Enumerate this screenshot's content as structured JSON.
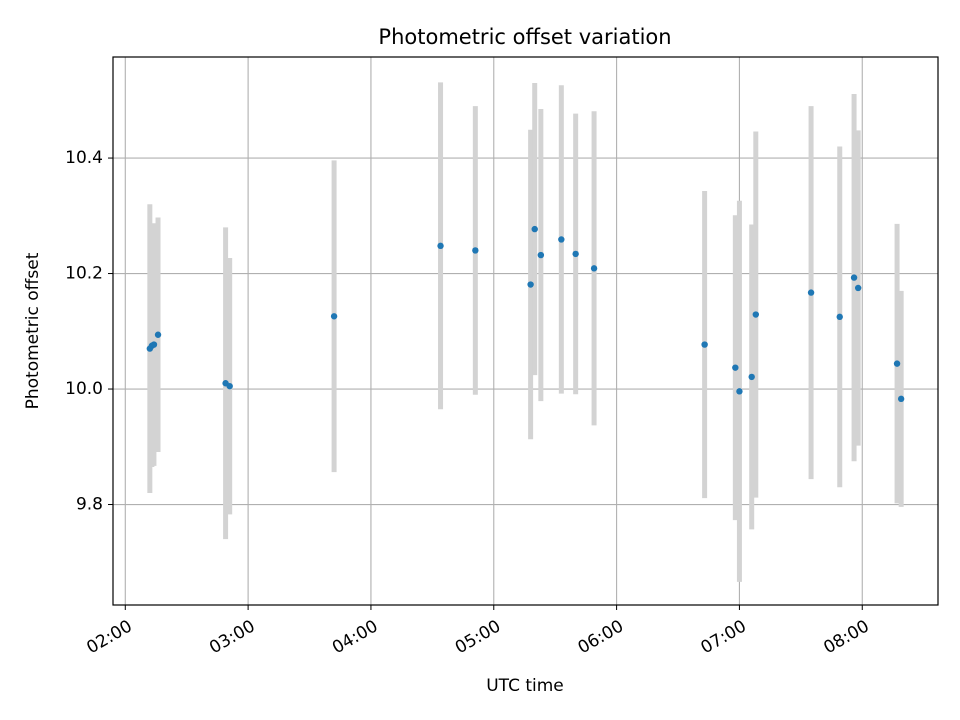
{
  "chart_data": {
    "type": "scatter",
    "title": "Photometric offset variation",
    "xlabel": "UTC time",
    "ylabel": "Photometric offset",
    "x_ticks": [
      "02:00",
      "03:00",
      "04:00",
      "05:00",
      "06:00",
      "07:00",
      "08:00"
    ],
    "y_ticks": [
      "9.8",
      "10.0",
      "10.2",
      "10.4"
    ],
    "xlim": [
      "01:54",
      "08:37"
    ],
    "ylim": [
      9.626,
      10.575
    ],
    "grid": true,
    "marker_color": "#1f77b4",
    "errorbar_color": "#d3d3d3",
    "points": [
      {
        "x": "02:12",
        "y": 10.07,
        "err": 0.25
      },
      {
        "x": "02:13",
        "y": 10.075,
        "err": 0.21
      },
      {
        "x": "02:14",
        "y": 10.077,
        "err": 0.21
      },
      {
        "x": "02:16",
        "y": 10.094,
        "err": 0.203
      },
      {
        "x": "02:49",
        "y": 10.01,
        "err": 0.27
      },
      {
        "x": "02:51",
        "y": 10.005,
        "err": 0.222
      },
      {
        "x": "03:42",
        "y": 10.126,
        "err": 0.27
      },
      {
        "x": "04:34",
        "y": 10.248,
        "err": 0.283
      },
      {
        "x": "04:51",
        "y": 10.24,
        "err": 0.25
      },
      {
        "x": "05:18",
        "y": 10.181,
        "err": 0.268
      },
      {
        "x": "05:20",
        "y": 10.277,
        "err": 0.253
      },
      {
        "x": "05:23",
        "y": 10.232,
        "err": 0.253
      },
      {
        "x": "05:33",
        "y": 10.259,
        "err": 0.267
      },
      {
        "x": "05:40",
        "y": 10.234,
        "err": 0.243
      },
      {
        "x": "05:49",
        "y": 10.209,
        "err": 0.272
      },
      {
        "x": "06:43",
        "y": 10.077,
        "err": 0.266
      },
      {
        "x": "06:58",
        "y": 10.037,
        "err": 0.264
      },
      {
        "x": "07:00",
        "y": 9.996,
        "err": 0.33
      },
      {
        "x": "07:06",
        "y": 10.021,
        "err": 0.264
      },
      {
        "x": "07:08",
        "y": 10.129,
        "err": 0.317
      },
      {
        "x": "07:35",
        "y": 10.167,
        "err": 0.323
      },
      {
        "x": "07:49",
        "y": 10.125,
        "err": 0.295
      },
      {
        "x": "07:56",
        "y": 10.193,
        "err": 0.318
      },
      {
        "x": "07:58",
        "y": 10.175,
        "err": 0.273
      },
      {
        "x": "08:17",
        "y": 10.044,
        "err": 0.242
      },
      {
        "x": "08:19",
        "y": 9.983,
        "err": 0.187
      }
    ]
  }
}
